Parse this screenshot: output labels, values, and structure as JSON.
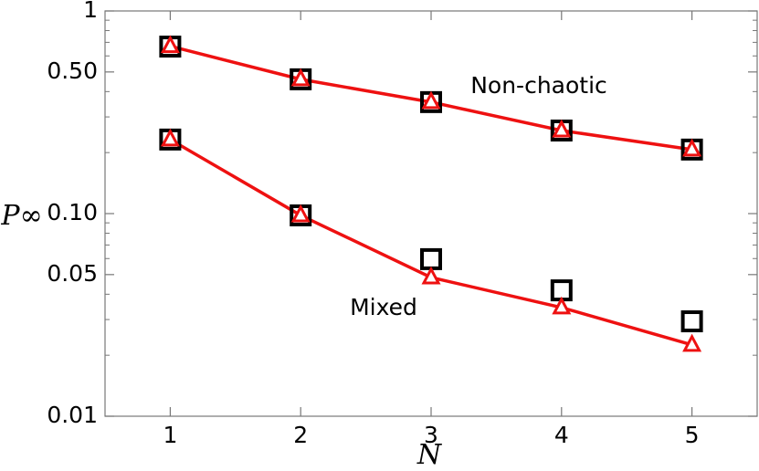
{
  "chart_data": {
    "type": "line",
    "xlabel": "N",
    "ylabel": "P∞",
    "x": [
      1,
      2,
      3,
      4,
      5
    ],
    "xlim": [
      0.5,
      5.5
    ],
    "xticks": [
      1,
      2,
      3,
      4,
      5
    ],
    "ylim": [
      0.01,
      1
    ],
    "log_y": true,
    "yticks": [
      0.01,
      0.05,
      {
        "value": 0.1,
        "label": "0.10"
      },
      {
        "value": 0.5,
        "label": "0.50"
      },
      1
    ],
    "yminorticks": [
      0.02,
      0.03,
      0.04,
      0.06,
      0.07,
      0.08,
      0.09,
      0.2,
      0.3,
      0.4,
      0.6,
      0.7,
      0.8,
      0.9
    ],
    "annotations": [
      "Non-chaotic",
      "Mixed"
    ],
    "series": [
      {
        "color": "#000000",
        "marker": "square",
        "line": false,
        "values": [
          0.667,
          0.46,
          0.355,
          0.257,
          0.207
        ]
      },
      {
        "color": "#000000",
        "marker": "square",
        "line": false,
        "values": [
          0.232,
          0.098,
          0.0596,
          0.0418,
          0.0294
        ]
      },
      {
        "color": "#ee1111",
        "marker": "triangle",
        "line": true,
        "values": [
          0.67,
          0.46,
          0.355,
          0.257,
          0.207
        ]
      },
      {
        "color": "#ee1111",
        "marker": "triangle",
        "line": true,
        "values": [
          0.232,
          0.098,
          0.0484,
          0.0344,
          0.0225
        ]
      }
    ]
  }
}
